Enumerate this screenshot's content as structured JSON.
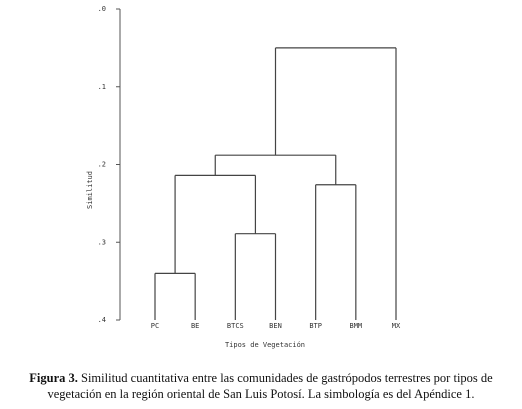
{
  "chart_data": {
    "type": "dendrogram",
    "y_label": "Similitud",
    "x_label": "Tipos de Vegetación",
    "ylim": [
      0,
      0.4
    ],
    "yticks": [
      {
        "value": 0,
        "label": ".0"
      },
      {
        "value": 0.1,
        "label": ".1"
      },
      {
        "value": 0.2,
        "label": ".2"
      },
      {
        "value": 0.3,
        "label": ".3"
      },
      {
        "value": 0.4,
        "label": ".4"
      }
    ],
    "color": "#444444",
    "tree": {
      "height": 0.05,
      "children": [
        {
          "height": 0.188,
          "children": [
            {
              "height": 0.214,
              "children": [
                {
                  "height": 0.34,
                  "children": [
                    "PC",
                    "BE"
                  ]
                },
                {
                  "height": 0.289,
                  "children": [
                    "BTCS",
                    "BEN"
                  ]
                }
              ]
            },
            {
              "height": 0.226,
              "children": [
                "BTP",
                "BMM"
              ]
            }
          ]
        },
        "MX"
      ]
    }
  },
  "caption": {
    "label": "Figura 3.",
    "text": "Similitud cuantitativa entre las comunidades de gastrópodos terrestres por tipos de vegetación en la región oriental de San Luis Potosí. La simbología es del Apéndice 1."
  }
}
